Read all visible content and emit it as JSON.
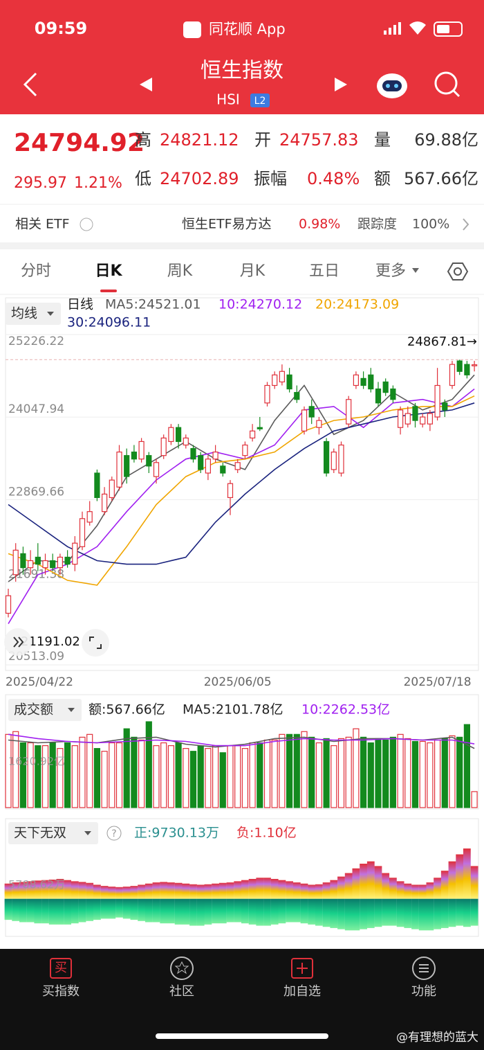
{
  "header": {
    "time": "09:59",
    "app": "同花顺 App",
    "title": "恒生指数",
    "code": "HSI",
    "badge": "L2"
  },
  "quote": {
    "price": "24794.92",
    "change": "295.97",
    "pct": "1.21%",
    "stats": [
      {
        "label": "高",
        "value": "24821.12"
      },
      {
        "label": "开",
        "value": "24757.83"
      },
      {
        "label": "量",
        "value": "69.88亿"
      },
      {
        "label": "低",
        "value": "24702.89"
      },
      {
        "label": "振幅",
        "value": "0.48%"
      },
      {
        "label": "额",
        "value": "567.66亿"
      }
    ]
  },
  "etf": {
    "label": "相关 ETF",
    "name": "恒生ETF易方达",
    "pct": "0.98%",
    "track_label": "跟踪度",
    "track": "100%"
  },
  "tabs": [
    "分时",
    "日K",
    "周K",
    "月K",
    "五日",
    "更多"
  ],
  "chart_data": [
    {
      "type": "candlestick",
      "selector": "均线",
      "period": "日线",
      "ylim": [
        20513.09,
        25226.22
      ],
      "yticks": [
        25226.22,
        24047.94,
        22869.66,
        21691.38,
        20513.09
      ],
      "max_marker": {
        "value": 24867.81,
        "label": "24867.81→"
      },
      "min_marker": {
        "value": 21191.02,
        "label": "21191.02"
      },
      "x_labels": [
        {
          "index": 0,
          "label": "2025/04/22"
        },
        {
          "index": 31,
          "label": "2025/06/05"
        },
        {
          "index": 58,
          "label": "2025/07/18"
        }
      ],
      "up_color": "#e0303a",
      "down_color": "#138a1e",
      "open": [
        21250,
        21800,
        22100,
        21900,
        22050,
        21900,
        22000,
        21900,
        22050,
        21950,
        22200,
        22550,
        23250,
        22700,
        22900,
        23050,
        23500,
        23550,
        23450,
        23500,
        23200,
        23500,
        23700,
        23900,
        23650,
        23600,
        23500,
        23250,
        23450,
        23350,
        22900,
        23300,
        23500,
        23750,
        23900,
        24250,
        24500,
        24550,
        24650,
        24400,
        23850,
        24200,
        23900,
        23700,
        23300,
        23250,
        23950,
        24500,
        24600,
        24650,
        24450,
        24550,
        24450,
        23900,
        23950,
        24200,
        23950,
        23950,
        24050,
        24250,
        24500,
        24850,
        24800,
        24780
      ],
      "high": [
        21600,
        22250,
        22200,
        22150,
        22250,
        22100,
        22100,
        22100,
        22150,
        22350,
        22700,
        22850,
        23300,
        23050,
        23200,
        23650,
        23600,
        23650,
        23750,
        23550,
        23450,
        23800,
        23950,
        23950,
        23800,
        23650,
        23550,
        23500,
        23650,
        23400,
        23150,
        23450,
        23700,
        23950,
        24050,
        24550,
        24700,
        24800,
        24750,
        24500,
        24200,
        24300,
        24050,
        23750,
        23600,
        23700,
        24350,
        24700,
        24700,
        24750,
        24550,
        24600,
        24500,
        24200,
        24200,
        24250,
        24100,
        24150,
        24750,
        24300,
        24850,
        24867.81,
        24850,
        24850
      ],
      "low": [
        21191.02,
        21700,
        21800,
        21800,
        21850,
        21800,
        21850,
        21800,
        21900,
        21850,
        22150,
        22500,
        22850,
        22650,
        22850,
        23000,
        23100,
        23400,
        23400,
        23250,
        23100,
        23450,
        23650,
        23600,
        23600,
        23400,
        23250,
        23150,
        23400,
        23200,
        22650,
        23250,
        23450,
        23700,
        23850,
        24200,
        24450,
        24500,
        24400,
        24250,
        23800,
        23950,
        23800,
        23200,
        23250,
        23200,
        23900,
        24450,
        24450,
        24400,
        24200,
        24350,
        24250,
        23800,
        23900,
        23900,
        23900,
        23850,
        24000,
        24050,
        24450,
        24650,
        24600,
        24700
      ],
      "close": [
        21500,
        22150,
        21900,
        22000,
        21950,
        22000,
        21900,
        22050,
        21950,
        22250,
        22600,
        22700,
        22900,
        22950,
        23150,
        23550,
        23200,
        23450,
        23700,
        23350,
        23400,
        23750,
        23900,
        23700,
        23750,
        23450,
        23300,
        23450,
        23550,
        23250,
        23100,
        23400,
        23650,
        23850,
        23880,
        24500,
        24650,
        24700,
        24450,
        24300,
        24150,
        24050,
        24000,
        23250,
        23550,
        23650,
        24300,
        24650,
        24500,
        24450,
        24250,
        24400,
        24300,
        24150,
        24100,
        24000,
        24050,
        24100,
        24500,
        24150,
        24800,
        24700,
        24650,
        24795
      ],
      "ma_index": [
        0,
        4,
        8,
        12,
        16,
        20,
        24,
        28,
        32,
        36,
        40,
        44,
        48,
        52,
        56,
        60,
        63
      ],
      "ma": [
        {
          "label": "MA5:24521.01",
          "color": "#5a5a5a",
          "values": [
            21700,
            22000,
            21980,
            22500,
            23200,
            23450,
            23700,
            23450,
            23300,
            24000,
            24500,
            23800,
            24000,
            24400,
            24150,
            24300,
            24650
          ]
        },
        {
          "label": "10:24270.12",
          "color": "#a020f0",
          "values": [
            21100,
            21800,
            21950,
            22200,
            22700,
            23150,
            23450,
            23550,
            23450,
            23650,
            24150,
            24200,
            23900,
            24250,
            24300,
            24200,
            24450
          ]
        },
        {
          "label": "20:24173.09",
          "color": "#f0a500",
          "values": [
            22100,
            21950,
            21720,
            21650,
            22200,
            22800,
            23200,
            23400,
            23450,
            23550,
            23850,
            24000,
            24050,
            24150,
            24200,
            24200,
            24350
          ]
        },
        {
          "label": "30:24096.11",
          "color": "#1a237e",
          "values": [
            22800,
            22500,
            22200,
            22000,
            21950,
            21950,
            22050,
            22550,
            22950,
            23300,
            23600,
            23850,
            23950,
            24050,
            24100,
            24150,
            24250
          ]
        }
      ]
    },
    {
      "type": "bar",
      "selector": "成交额",
      "amount_label": "额:567.66亿",
      "ylim": [
        0,
        3100
      ],
      "yticks": [
        {
          "value": 1620.92,
          "label": "1620.92亿"
        }
      ],
      "values": [
        2600,
        2700,
        2300,
        2300,
        2200,
        2200,
        2300,
        2100,
        2300,
        2200,
        2500,
        2600,
        2100,
        2000,
        2300,
        2300,
        2800,
        2500,
        2400,
        3050,
        2200,
        2300,
        2200,
        2300,
        2100,
        2000,
        2200,
        2100,
        2200,
        1950,
        2200,
        2200,
        2100,
        2300,
        2300,
        2400,
        2400,
        2600,
        2600,
        2600,
        2700,
        2500,
        2300,
        2450,
        2200,
        2450,
        2500,
        2800,
        2500,
        2300,
        2450,
        2400,
        2500,
        2600,
        2450,
        2350,
        2350,
        2300,
        2400,
        2450,
        2550,
        2500,
        2950,
        567.66
      ],
      "ma_index": [
        0,
        4,
        8,
        12,
        16,
        20,
        24,
        28,
        32,
        36,
        40,
        44,
        48,
        52,
        56,
        60,
        63
      ],
      "ma": [
        {
          "label": "MA5:2101.78亿",
          "color": "#5a5a5a",
          "values": [
            2400,
            2300,
            2350,
            2300,
            2450,
            2500,
            2250,
            2150,
            2250,
            2450,
            2500,
            2350,
            2450,
            2450,
            2400,
            2500,
            2100
          ]
        },
        {
          "label": "10:2262.53亿",
          "color": "#a020f0",
          "values": [
            2600,
            2450,
            2350,
            2300,
            2350,
            2400,
            2350,
            2200,
            2200,
            2350,
            2450,
            2400,
            2400,
            2450,
            2400,
            2400,
            2260
          ]
        }
      ]
    },
    {
      "type": "pos_neg_bar",
      "selector": "天下无双",
      "help": "?",
      "pos_label": "正:9730.13万",
      "neg_label": "负:1.10亿",
      "ylim": [
        -14000,
        23000
      ],
      "yticks": [
        {
          "value": 5788.62,
          "label": "5788.62万"
        }
      ],
      "pos": [
        6500,
        7000,
        7200,
        7500,
        7800,
        8000,
        8200,
        8500,
        8000,
        7500,
        7200,
        6800,
        6000,
        5500,
        5200,
        5000,
        5200,
        5500,
        6000,
        6500,
        7000,
        7200,
        7000,
        6800,
        6500,
        6200,
        6000,
        6200,
        6500,
        6800,
        7000,
        7500,
        8000,
        8500,
        9000,
        9000,
        8500,
        8000,
        7500,
        7000,
        6500,
        6000,
        6200,
        7000,
        8000,
        9500,
        11000,
        13000,
        15000,
        16000,
        14000,
        11000,
        9000,
        7500,
        6500,
        6000,
        6000,
        7000,
        9000,
        12000,
        16000,
        19000,
        21500,
        14000
      ],
      "neg": [
        -9000,
        -9500,
        -10000,
        -10000,
        -10500,
        -10500,
        -11000,
        -11000,
        -11000,
        -10500,
        -10000,
        -9500,
        -9000,
        -8500,
        -8500,
        -8000,
        -8500,
        -9000,
        -9500,
        -10000,
        -10000,
        -10500,
        -10500,
        -11000,
        -11000,
        -11500,
        -11500,
        -11000,
        -10500,
        -10500,
        -10000,
        -10000,
        -10500,
        -11000,
        -11500,
        -11500,
        -11000,
        -10500,
        -10000,
        -10000,
        -10500,
        -11000,
        -11500,
        -12000,
        -12500,
        -13000,
        -13500,
        -13500,
        -13000,
        -12500,
        -12000,
        -11500,
        -11500,
        -12000,
        -12500,
        -13000,
        -13500,
        -13500,
        -13000,
        -12500,
        -12000,
        -11500,
        -12000,
        -11500
      ]
    }
  ],
  "nav": [
    {
      "icon": "买",
      "label": "买指数"
    },
    {
      "label": "社区"
    },
    {
      "label": "加自选"
    },
    {
      "label": "功能"
    }
  ],
  "watermark": "@有理想的蓝大"
}
